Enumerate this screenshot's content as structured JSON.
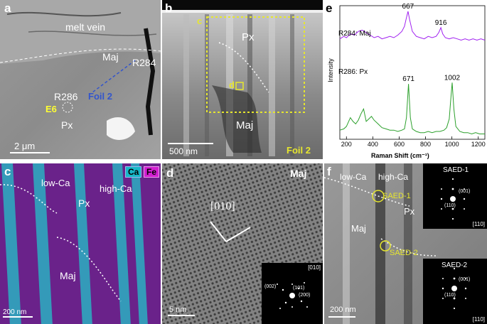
{
  "panel_a": {
    "letter": "a",
    "melt_vein": "melt vein",
    "maj": "Maj",
    "r284": "R284",
    "foil2": "Foil 2",
    "r286": "R286",
    "e6": "E6",
    "px": "Px",
    "scale": "2 μm"
  },
  "panel_b": {
    "letter": "b",
    "c": "c",
    "px": "Px",
    "d": "d",
    "maj": "Maj",
    "scale": "500 nm",
    "foil2": "Foil 2"
  },
  "panel_c": {
    "letter": "c",
    "legend_ca": "Ca",
    "legend_fe": "Fe",
    "low_ca": "low-Ca",
    "high_ca": "high-Ca",
    "px": "Px",
    "maj": "Maj",
    "scale": "200 nm"
  },
  "panel_d": {
    "letter": "d",
    "maj": "Maj",
    "zone": "[010]",
    "scale": "5 nm",
    "inset_zone": "[010]",
    "spot_002": "(002)",
    "spot_101": "(101)",
    "spot_200": "(200)"
  },
  "panel_f": {
    "letter": "f",
    "low_ca": "low-Ca",
    "high_ca": "high-Ca",
    "saed1": "SAED-1",
    "px": "Px",
    "maj": "Maj",
    "saed2": "SAED-2",
    "scale": "200 nm",
    "inset1_title": "SAED-1",
    "inset1_zone": "[110]",
    "inset1_s1": "(001)",
    "inset1_s2": "(110)",
    "inset2_title": "SAED-2",
    "inset2_zone": "[110]",
    "inset2_s1": "(001)",
    "inset2_s2": "(110)"
  },
  "panel_e": {
    "letter": "e",
    "chart_data": {
      "type": "line",
      "xlabel": "Raman Shift (cm⁻¹)",
      "ylabel": "Intensity",
      "xlim": [
        150,
        1250
      ],
      "xticks": [
        200,
        400,
        600,
        800,
        1000,
        1200
      ],
      "series": [
        {
          "name": "R284: Maj",
          "color": "#a020f0",
          "peaks_labelled": [
            667,
            916
          ],
          "x": [
            150,
            180,
            200,
            230,
            260,
            290,
            320,
            350,
            380,
            410,
            440,
            470,
            500,
            530,
            560,
            590,
            620,
            640,
            655,
            667,
            680,
            700,
            730,
            760,
            790,
            820,
            850,
            880,
            900,
            916,
            930,
            950,
            980,
            1010,
            1040,
            1070,
            1100,
            1130,
            1160,
            1190,
            1220,
            1250
          ],
          "y": [
            0.78,
            0.8,
            0.79,
            0.82,
            0.81,
            0.84,
            0.85,
            0.83,
            0.81,
            0.79,
            0.8,
            0.78,
            0.79,
            0.8,
            0.79,
            0.81,
            0.84,
            0.88,
            0.95,
            1.0,
            0.93,
            0.84,
            0.8,
            0.79,
            0.78,
            0.8,
            0.79,
            0.8,
            0.83,
            0.87,
            0.82,
            0.79,
            0.78,
            0.79,
            0.78,
            0.77,
            0.78,
            0.77,
            0.78,
            0.77,
            0.78,
            0.77
          ]
        },
        {
          "name": "R286: Px",
          "color": "#2ca02c",
          "peaks_labelled": [
            671,
            1002
          ],
          "x": [
            150,
            180,
            200,
            230,
            250,
            270,
            290,
            310,
            330,
            350,
            370,
            390,
            410,
            440,
            470,
            500,
            530,
            560,
            590,
            620,
            640,
            655,
            671,
            685,
            700,
            730,
            760,
            790,
            820,
            850,
            880,
            910,
            940,
            960,
            980,
            990,
            1002,
            1015,
            1030,
            1060,
            1090,
            1120,
            1150,
            1180,
            1210,
            1250
          ],
          "y": [
            0.05,
            0.06,
            0.08,
            0.15,
            0.12,
            0.1,
            0.13,
            0.18,
            0.22,
            0.12,
            0.14,
            0.16,
            0.13,
            0.1,
            0.07,
            0.06,
            0.05,
            0.05,
            0.04,
            0.05,
            0.06,
            0.15,
            0.42,
            0.15,
            0.06,
            0.04,
            0.03,
            0.03,
            0.04,
            0.03,
            0.04,
            0.04,
            0.05,
            0.07,
            0.14,
            0.28,
            0.43,
            0.22,
            0.08,
            0.04,
            0.03,
            0.03,
            0.02,
            0.03,
            0.02,
            0.02
          ]
        }
      ]
    }
  }
}
